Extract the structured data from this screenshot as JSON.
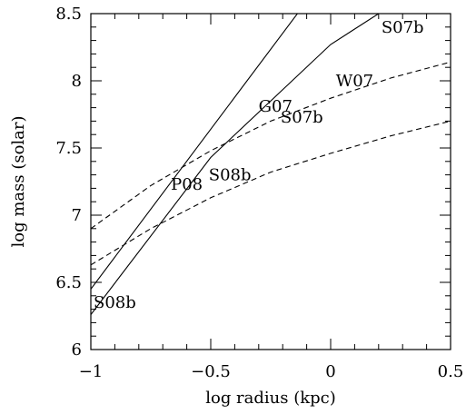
{
  "chart_data": {
    "type": "line",
    "xlabel": "log radius (kpc)",
    "ylabel": "log mass (solar)",
    "xlim": [
      -1,
      0.5
    ],
    "ylim": [
      6,
      8.5
    ],
    "xticks": [
      -1,
      -0.5,
      0,
      0.5
    ],
    "xtick_labels": [
      "−1",
      "−0.5",
      "0",
      "0.5"
    ],
    "yticks": [
      6,
      6.5,
      7,
      7.5,
      8,
      8.5
    ],
    "ytick_labels": [
      "6",
      "6.5",
      "7",
      "7.5",
      "8",
      "8.5"
    ],
    "grid": false,
    "series": [
      {
        "style": "solid",
        "x": [
          -1.0,
          -0.5,
          0.0,
          0.11
        ],
        "y": [
          6.45,
          7.64,
          8.83,
          8.5
        ]
      },
      {
        "style": "solid",
        "x": [
          -1.0,
          -0.5,
          0.0,
          0.2
        ],
        "y": [
          6.26,
          7.43,
          8.27,
          8.5
        ]
      },
      {
        "style": "dashed",
        "x": [
          -1.0,
          -0.75,
          -0.5,
          -0.25,
          0.0,
          0.25,
          0.5
        ],
        "y": [
          6.9,
          7.22,
          7.48,
          7.7,
          7.87,
          8.02,
          8.14
        ]
      },
      {
        "style": "dashed",
        "x": [
          -1.0,
          -0.75,
          -0.5,
          -0.25,
          0.0,
          0.25,
          0.5
        ],
        "y": [
          6.63,
          6.9,
          7.13,
          7.32,
          7.46,
          7.59,
          7.7
        ]
      }
    ],
    "annotations": [
      {
        "text": "S07b",
        "x": 0.3,
        "y": 8.4
      },
      {
        "text": "W07",
        "x": 0.1,
        "y": 8.0
      },
      {
        "text": "G07",
        "x": -0.23,
        "y": 7.81
      },
      {
        "text": "S07b",
        "x": -0.12,
        "y": 7.73
      },
      {
        "text": "P08",
        "x": -0.6,
        "y": 7.23
      },
      {
        "text": "S08b",
        "x": -0.42,
        "y": 7.3
      },
      {
        "text": "S08b",
        "x": -0.9,
        "y": 6.35
      }
    ]
  }
}
